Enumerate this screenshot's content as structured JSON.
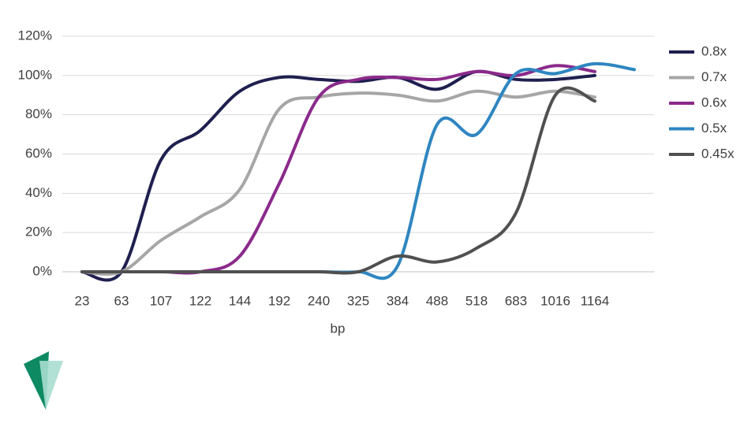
{
  "chart_data": {
    "type": "line",
    "x_label": "bp",
    "categories": [
      "23",
      "63",
      "107",
      "122",
      "144",
      "192",
      "240",
      "325",
      "384",
      "488",
      "518",
      "683",
      "1016",
      "1164",
      null
    ],
    "series": [
      {
        "name": "0.8x",
        "color": "#1f1f4f",
        "values": [
          0,
          0,
          57,
          72,
          92,
          99,
          98,
          97,
          99,
          93,
          102,
          98,
          98,
          100,
          null
        ]
      },
      {
        "name": "0.7x",
        "color": "#a6a6a6",
        "values": [
          0,
          0,
          16,
          28,
          42,
          83,
          89,
          91,
          90,
          87,
          92,
          89,
          92,
          89,
          null
        ]
      },
      {
        "name": "0.6x",
        "color": "#8b2a8b",
        "values": [
          0,
          0,
          0,
          0,
          8,
          45,
          89,
          98,
          99,
          98,
          102,
          100,
          105,
          102,
          null
        ]
      },
      {
        "name": "0.5x",
        "color": "#2e86c1",
        "values": [
          0,
          0,
          0,
          0,
          0,
          0,
          0,
          0,
          3,
          75,
          70,
          101,
          101,
          106,
          103
        ]
      },
      {
        "name": "0.45x",
        "color": "#505050",
        "values": [
          0,
          0,
          0,
          0,
          0,
          0,
          0,
          0,
          8,
          5,
          12,
          30,
          90,
          87,
          null
        ]
      }
    ],
    "ylim": [
      0,
      120
    ],
    "yticks": [
      {
        "value": 0,
        "label": "0%"
      },
      {
        "value": 20,
        "label": "20%"
      },
      {
        "value": 40,
        "label": "40%"
      },
      {
        "value": 60,
        "label": "60%"
      },
      {
        "value": 80,
        "label": "80%"
      },
      {
        "value": 100,
        "label": "100%"
      },
      {
        "value": 120,
        "label": "120%"
      }
    ],
    "grid": true,
    "legend": "right"
  }
}
